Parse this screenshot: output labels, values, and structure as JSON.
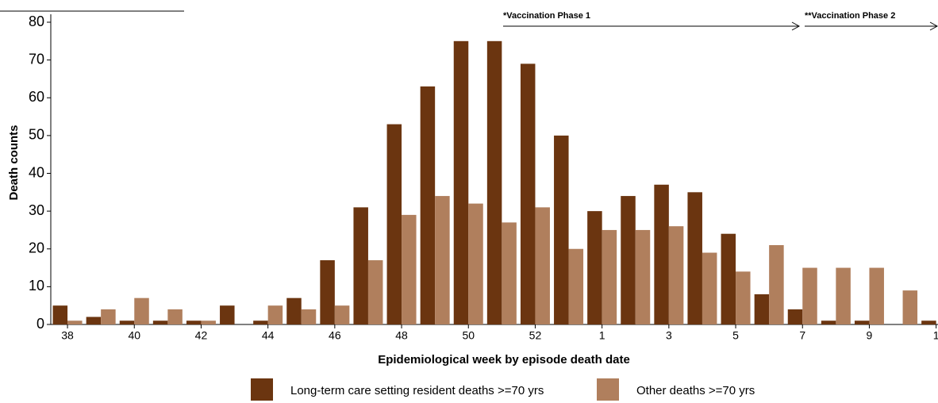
{
  "chart_data": {
    "type": "bar",
    "x_label": "Epidemiological week by episode death date",
    "y_label": "Death counts",
    "annotations": [
      "*Vaccination Phase 1",
      "**Vaccination Phase 2"
    ],
    "categories": [
      "38",
      null,
      "40",
      null,
      "42",
      null,
      "44",
      null,
      "46",
      null,
      "48",
      null,
      "50",
      null,
      "52",
      null,
      "1",
      null,
      "3",
      null,
      "5",
      null,
      "7",
      null,
      "9",
      null,
      "1"
    ],
    "series": [
      {
        "name": "Long-term care setting resident deaths >=70 yrs",
        "color": "#6b3510",
        "values": [
          5,
          2,
          1,
          1,
          1,
          5,
          1,
          7,
          17,
          31,
          53,
          63,
          75,
          75,
          69,
          50,
          30,
          34,
          37,
          35,
          24,
          8,
          4,
          1,
          1,
          0,
          1
        ]
      },
      {
        "name": "Other deaths >=70 yrs",
        "color": "#b07f5d",
        "values": [
          1,
          4,
          7,
          4,
          1,
          0,
          5,
          4,
          5,
          17,
          29,
          34,
          32,
          27,
          31,
          20,
          25,
          25,
          26,
          19,
          14,
          21,
          15,
          15,
          15,
          9,
          null
        ]
      }
    ],
    "ylim": [
      0,
      80
    ],
    "yticks": [
      0,
      10,
      20,
      30,
      40,
      50,
      60,
      70,
      80
    ],
    "grid": false
  }
}
